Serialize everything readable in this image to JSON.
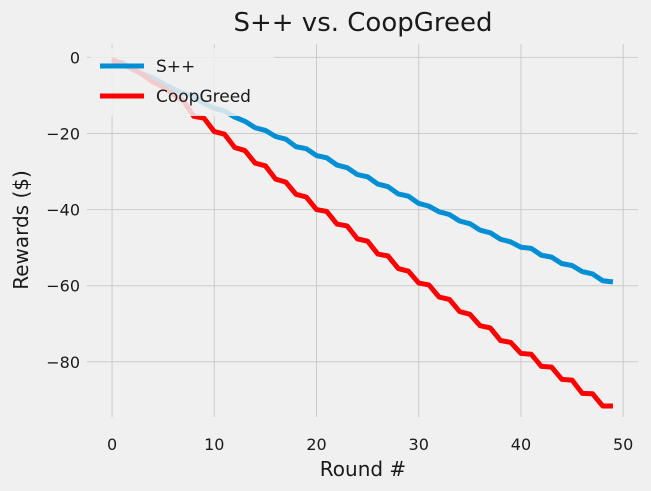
{
  "chart_data": {
    "type": "line",
    "title": "S++ vs. CoopGreed",
    "xlabel": "Round #",
    "ylabel": "Rewards ($)",
    "xlim": [
      -2.45,
      51.45
    ],
    "ylim": [
      -94.5,
      3.5
    ],
    "xticks": [
      0,
      10,
      20,
      30,
      40,
      50
    ],
    "yticks": [
      0,
      -20,
      -40,
      -60,
      -80
    ],
    "xtick_labels": [
      "0",
      "10",
      "20",
      "30",
      "40",
      "50"
    ],
    "ytick_labels": [
      "0",
      "−20",
      "−40",
      "−60",
      "−80"
    ],
    "grid": true,
    "legend_position": "top-left",
    "x": [
      0,
      1,
      2,
      3,
      4,
      5,
      6,
      7,
      8,
      9,
      10,
      11,
      12,
      13,
      14,
      15,
      16,
      17,
      18,
      19,
      20,
      21,
      22,
      23,
      24,
      25,
      26,
      27,
      28,
      29,
      30,
      31,
      32,
      33,
      34,
      35,
      36,
      37,
      38,
      39,
      40,
      41,
      42,
      43,
      44,
      45,
      46,
      47,
      48,
      49
    ],
    "series": [
      {
        "name": "S++",
        "color": "#008fd5",
        "values": [
          -1,
          -1.4,
          -3.2,
          -4.4,
          -5.4,
          -6.9,
          -8.3,
          -9.5,
          -10.3,
          -12.1,
          -13.4,
          -14.1,
          -15.7,
          -16.8,
          -18.5,
          -19.2,
          -20.8,
          -21.5,
          -23.5,
          -24.0,
          -25.8,
          -26.4,
          -28.3,
          -29.0,
          -30.8,
          -31.4,
          -33.3,
          -34.0,
          -35.9,
          -36.5,
          -38.4,
          -39.1,
          -40.6,
          -41.3,
          -43.0,
          -43.7,
          -45.4,
          -46.1,
          -47.8,
          -48.5,
          -49.9,
          -50.2,
          -52.0,
          -52.5,
          -54.2,
          -54.7,
          -56.3,
          -56.9,
          -58.7,
          -59.0
        ]
      },
      {
        "name": "CoopGreed",
        "color": "#ff0000",
        "values": [
          -0.5,
          -1.8,
          -3.0,
          -4.5,
          -6.5,
          -7.8,
          -9.8,
          -11.5,
          -15.5,
          -16.0,
          -19.5,
          -20.2,
          -23.7,
          -24.5,
          -27.8,
          -28.5,
          -32.0,
          -32.8,
          -36.0,
          -36.7,
          -40.0,
          -40.5,
          -43.8,
          -44.3,
          -47.7,
          -48.3,
          -51.7,
          -52.2,
          -55.5,
          -56.2,
          -59.3,
          -59.8,
          -63.0,
          -63.6,
          -66.8,
          -67.5,
          -70.5,
          -71.1,
          -74.4,
          -74.9,
          -77.8,
          -78.0,
          -81.2,
          -81.4,
          -84.6,
          -84.8,
          -88.3,
          -88.4,
          -91.6,
          -91.6
        ]
      }
    ]
  }
}
